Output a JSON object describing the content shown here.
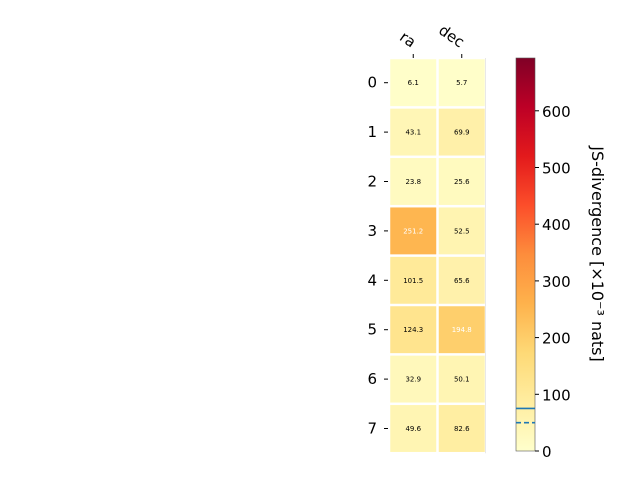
{
  "chart_data": {
    "type": "heatmap",
    "columns": [
      "ra",
      "dec"
    ],
    "rows": [
      "0",
      "1",
      "2",
      "3",
      "4",
      "5",
      "6",
      "7"
    ],
    "values": [
      [
        6.1,
        5.7
      ],
      [
        43.1,
        69.9
      ],
      [
        23.8,
        25.6
      ],
      [
        251.2,
        52.5
      ],
      [
        101.5,
        65.6
      ],
      [
        124.3,
        194.8
      ],
      [
        32.9,
        50.1
      ],
      [
        49.6,
        82.6
      ]
    ],
    "colorbar": {
      "label": "JS-divergence [×10⁻³ nats]",
      "range": [
        0,
        693.1
      ],
      "ticks": [
        0,
        100,
        200,
        300,
        400,
        500,
        600
      ],
      "colormap": "YlOrRd",
      "reference_lines": [
        {
          "value": 75,
          "style": "solid",
          "color": "#1f77b4"
        },
        {
          "value": 50,
          "style": "dashed",
          "color": "#1f77b4"
        }
      ]
    }
  }
}
